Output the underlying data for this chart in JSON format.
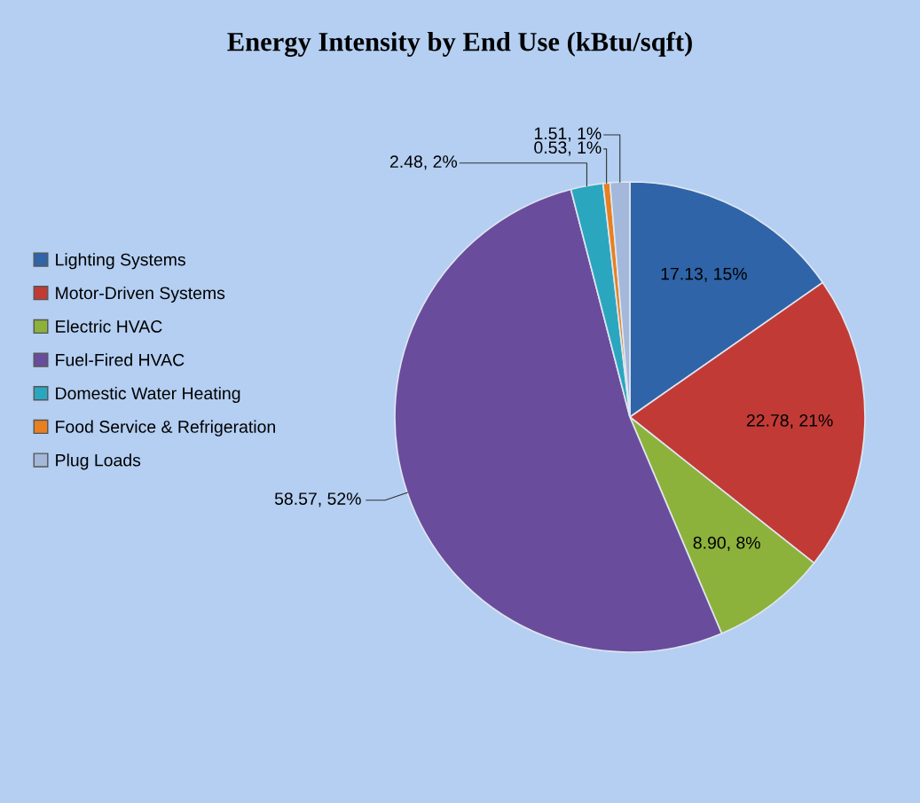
{
  "chart_data": {
    "type": "pie",
    "title": "Energy Intensity by End Use (kBtu/sqft)",
    "categories": [
      "Lighting Systems",
      "Motor-Driven Systems",
      "Electric HVAC",
      "Fuel-Fired HVAC",
      "Domestic Water Heating",
      "Food Service & Refrigeration",
      "Plug Loads"
    ],
    "values": [
      17.13,
      22.78,
      8.9,
      58.57,
      2.48,
      0.53,
      1.51
    ],
    "colors": [
      "#2f64a8",
      "#c23a36",
      "#8db23c",
      "#6a4c9c",
      "#2ba6bf",
      "#e8801f",
      "#a3b8da"
    ],
    "value_labels": [
      "17.13, 15%",
      "22.78, 21%",
      "8.90, 8%",
      "58.57, 52%",
      "2.48, 2%",
      "0.53, 1%",
      "1.51, 1%"
    ],
    "legend": "left"
  }
}
